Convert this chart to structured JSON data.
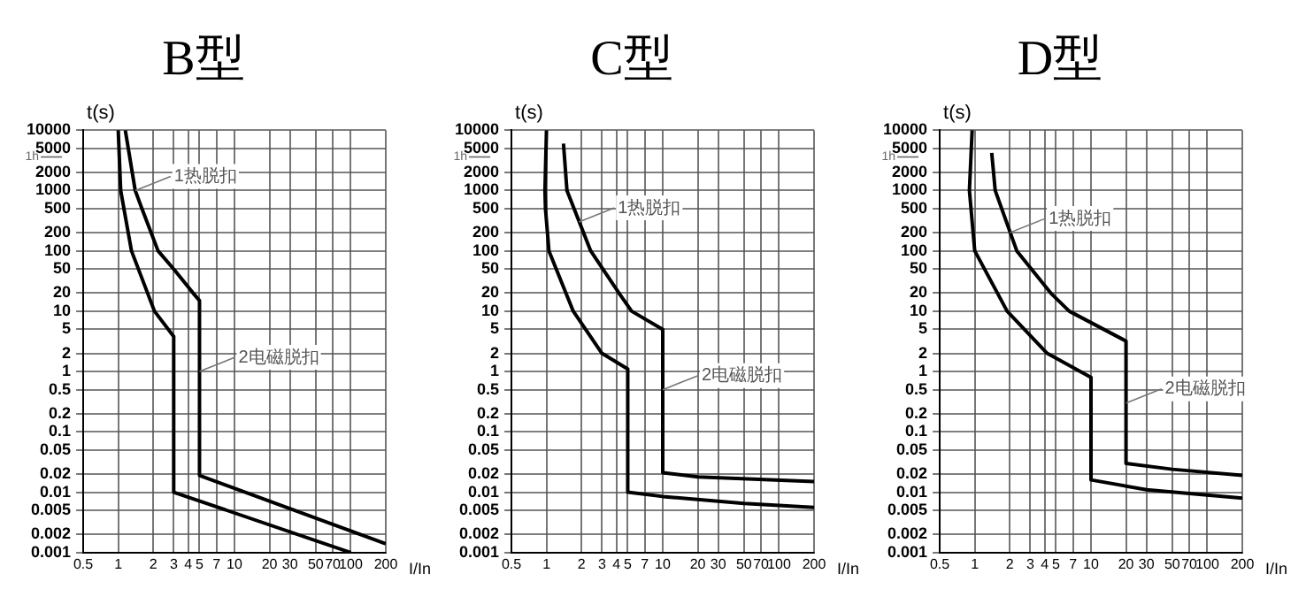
{
  "chart_data": [
    {
      "type": "line",
      "title": "B型",
      "xlabel": "I/In",
      "ylabel": "t(s)",
      "log": "xy",
      "grid": true,
      "legend": false,
      "marker": "none",
      "line_style": "solid",
      "xlim": [
        0.5,
        200
      ],
      "ylim": [
        0.001,
        10000
      ],
      "xticks": [
        0.5,
        1,
        2,
        3,
        4,
        5,
        7,
        10,
        20,
        30,
        50,
        70,
        100,
        200
      ],
      "yticks": [
        0.001,
        0.002,
        0.005,
        0.01,
        0.02,
        0.05,
        0.1,
        0.2,
        0.5,
        1,
        2,
        5,
        10,
        20,
        50,
        100,
        200,
        500,
        1000,
        2000,
        5000,
        10000
      ],
      "ref_lines": [
        {
          "axis": "y",
          "value": 3600,
          "label": "1h"
        }
      ],
      "annotations": [
        {
          "text": "1热脱扣",
          "x": 1.4,
          "y": 1000
        },
        {
          "text": "2电磁脱扣",
          "x": 5,
          "y": 1
        }
      ],
      "series": [
        {
          "color": "#000000",
          "x": [
            1,
            1.05,
            1.3,
            2.05,
            3,
            3,
            100
          ],
          "values": [
            10000,
            1000,
            100,
            10,
            3.8,
            0.01,
            0.001
          ]
        },
        {
          "color": "#000000",
          "x": [
            1.15,
            1.4,
            1.6,
            2.2,
            3,
            4.4,
            5,
            5,
            200
          ],
          "values": [
            10000,
            1000,
            500,
            100,
            50,
            20,
            15,
            0.019,
            0.0014
          ]
        }
      ]
    },
    {
      "type": "line",
      "title": "C型",
      "xlabel": "I/In",
      "ylabel": "t(s)",
      "log": "xy",
      "grid": true,
      "legend": false,
      "marker": "none",
      "line_style": "solid",
      "xlim": [
        0.5,
        200
      ],
      "ylim": [
        0.001,
        10000
      ],
      "xticks": [
        0.5,
        1,
        2,
        3,
        4,
        5,
        7,
        10,
        20,
        30,
        50,
        70,
        100,
        200
      ],
      "yticks": [
        0.001,
        0.002,
        0.005,
        0.01,
        0.02,
        0.05,
        0.1,
        0.2,
        0.5,
        1,
        2,
        5,
        10,
        20,
        50,
        100,
        200,
        500,
        1000,
        2000,
        5000,
        10000
      ],
      "ref_lines": [
        {
          "axis": "y",
          "value": 3600,
          "label": "1h"
        }
      ],
      "annotations": [
        {
          "text": "1热脱扣",
          "x": 1.9,
          "y": 300
        },
        {
          "text": "2电磁脱扣",
          "x": 10,
          "y": 0.5
        }
      ],
      "series": [
        {
          "color": "#000000",
          "x": [
            1,
            0.97,
            0.98,
            1.05,
            1.7,
            3,
            5,
            5,
            10,
            50,
            200
          ],
          "values": [
            10000,
            1000,
            500,
            100,
            10,
            2,
            1.1,
            0.01,
            0.0085,
            0.0065,
            0.0056
          ]
        },
        {
          "color": "#000000",
          "x": [
            1.4,
            1.5,
            2.4,
            4.2,
            5.4,
            10,
            10,
            20,
            200
          ],
          "values": [
            6000,
            1000,
            100,
            20,
            10,
            5,
            0.021,
            0.018,
            0.015
          ]
        }
      ]
    },
    {
      "type": "line",
      "title": "D型",
      "xlabel": "I/In",
      "ylabel": "t(s)",
      "log": "xy",
      "grid": true,
      "legend": false,
      "marker": "none",
      "line_style": "solid",
      "xlim": [
        0.5,
        200
      ],
      "ylim": [
        0.001,
        10000
      ],
      "xticks": [
        0.5,
        1,
        2,
        3,
        4,
        5,
        7,
        10,
        20,
        30,
        50,
        70,
        100,
        200
      ],
      "yticks": [
        0.001,
        0.002,
        0.005,
        0.01,
        0.02,
        0.05,
        0.1,
        0.2,
        0.5,
        1,
        2,
        5,
        10,
        20,
        50,
        100,
        200,
        500,
        1000,
        2000,
        5000,
        10000
      ],
      "ref_lines": [
        {
          "axis": "y",
          "value": 3600,
          "label": "1h"
        }
      ],
      "annotations": [
        {
          "text": "1热脱扣",
          "x": 2,
          "y": 200
        },
        {
          "text": "2电磁脱扣",
          "x": 20,
          "y": 0.3
        }
      ],
      "series": [
        {
          "color": "#000000",
          "x": [
            0.95,
            0.9,
            1,
            1.9,
            4.2,
            10,
            10,
            30,
            200
          ],
          "values": [
            10000,
            1000,
            100,
            10,
            2,
            0.8,
            0.016,
            0.011,
            0.008
          ]
        },
        {
          "color": "#000000",
          "x": [
            1.4,
            1.5,
            2.3,
            4.5,
            6.5,
            20,
            20,
            50,
            200
          ],
          "values": [
            4200,
            1000,
            100,
            20,
            10,
            3.2,
            0.03,
            0.024,
            0.019
          ]
        }
      ]
    }
  ]
}
